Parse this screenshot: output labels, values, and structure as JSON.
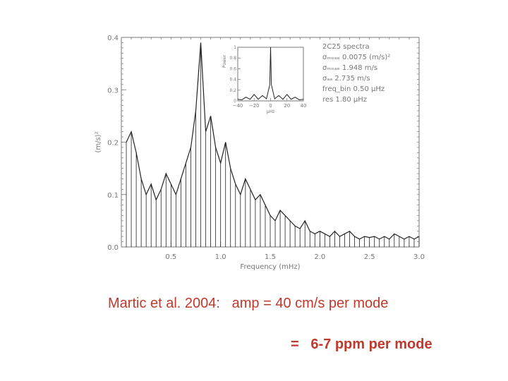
{
  "chart_data": {
    "type": "line",
    "title": "",
    "xlabel": "Frequency (mHz)",
    "ylabel": "(m/s)²",
    "xlim": [
      0.0,
      3.0
    ],
    "ylim": [
      0.0,
      0.4
    ],
    "xticks": [
      "0.5",
      "1.0",
      "1.5",
      "2.0",
      "2.5",
      "3.0"
    ],
    "yticks": [
      "0.0",
      "0.1",
      "0.2",
      "0.3",
      "0.4"
    ],
    "x": [
      0.05,
      0.1,
      0.15,
      0.2,
      0.25,
      0.3,
      0.35,
      0.4,
      0.45,
      0.5,
      0.55,
      0.6,
      0.65,
      0.7,
      0.75,
      0.8,
      0.85,
      0.9,
      0.95,
      1.0,
      1.05,
      1.1,
      1.15,
      1.2,
      1.25,
      1.3,
      1.35,
      1.4,
      1.45,
      1.5,
      1.55,
      1.6,
      1.65,
      1.7,
      1.75,
      1.8,
      1.85,
      1.9,
      1.95,
      2.0,
      2.05,
      2.1,
      2.15,
      2.2,
      2.25,
      2.3,
      2.35,
      2.4,
      2.45,
      2.5,
      2.55,
      2.6,
      2.65,
      2.7,
      2.75,
      2.8,
      2.85,
      2.9,
      2.95,
      3.0
    ],
    "series": [
      {
        "values": [
          0.2,
          0.22,
          0.18,
          0.13,
          0.1,
          0.12,
          0.09,
          0.11,
          0.14,
          0.12,
          0.1,
          0.13,
          0.16,
          0.19,
          0.26,
          0.39,
          0.22,
          0.25,
          0.19,
          0.16,
          0.2,
          0.15,
          0.12,
          0.1,
          0.13,
          0.11,
          0.09,
          0.1,
          0.08,
          0.06,
          0.05,
          0.07,
          0.06,
          0.05,
          0.04,
          0.035,
          0.05,
          0.03,
          0.025,
          0.03,
          0.025,
          0.02,
          0.03,
          0.02,
          0.025,
          0.03,
          0.02,
          0.015,
          0.02,
          0.018,
          0.02,
          0.015,
          0.02,
          0.015,
          0.025,
          0.02,
          0.015,
          0.02,
          0.015,
          0.02
        ]
      }
    ],
    "inset": {
      "type": "line",
      "xlabel": "μHz",
      "ylabel": "Power",
      "xlim": [
        -40,
        40
      ],
      "ylim": [
        0,
        1.0
      ],
      "xticks": [
        "−40",
        "−20",
        "0",
        "20",
        "40"
      ],
      "yticks": [
        "0",
        "0.2",
        "0.4",
        "0.6",
        "0.8",
        "1"
      ],
      "x": [
        -40,
        -35,
        -30,
        -25,
        -20,
        -15,
        -10,
        -5,
        -1,
        0,
        1,
        5,
        10,
        15,
        20,
        25,
        30,
        35,
        40
      ],
      "values": [
        0.03,
        0.02,
        0.07,
        0.03,
        0.12,
        0.03,
        0.1,
        0.04,
        0.3,
        1.0,
        0.3,
        0.04,
        0.1,
        0.03,
        0.12,
        0.03,
        0.07,
        0.02,
        0.03
      ]
    },
    "annotations": [
      "2C25 spectra",
      "σₘₒₐₑ 0.0075 (m/s)²",
      "σₘₒₐₑ 1.948 m/s",
      "σₐₐ 2.735 m/s",
      "freq_bin 0.50 μHz",
      "res 1.80 μHz"
    ]
  },
  "captions": {
    "line1": "Martic et al. 2004:   amp = 40 cm/s per mode",
    "line2": "=   6-7 ppm per mode"
  },
  "colors": {
    "caption": "#c0392b",
    "data": "#222222",
    "axis": "#777777"
  }
}
